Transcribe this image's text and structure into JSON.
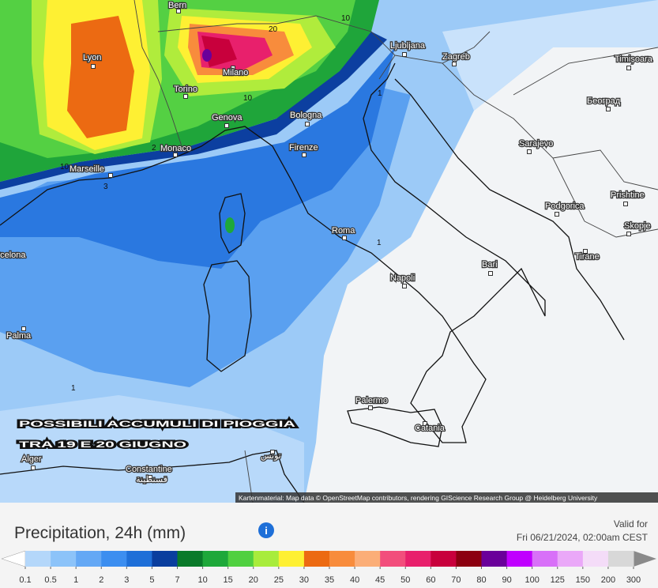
{
  "map": {
    "cities": [
      "Bern",
      "Lyon",
      "Milano",
      "Torino",
      "Genova",
      "Monaco",
      "Marseille",
      "Bologna",
      "Firenze",
      "Roma",
      "Napoli",
      "Bari",
      "Palermo",
      "Catania",
      "Palma",
      "Barcelona",
      "Alger",
      "Constantine",
      "قسنطينة",
      "تونس",
      "Ljubljana",
      "Zagreb",
      "Sarajevo",
      "Podgorica",
      "Tirane",
      "Skopje",
      "Prishtine",
      "Београд",
      "Timișoara"
    ],
    "contour_labels": [
      10,
      20,
      10,
      10,
      2,
      3,
      1,
      1,
      1
    ],
    "overlay": {
      "line1": "POSSIBILI ACCUMULI DI PIOGGIA",
      "line2": "TRA 19 E 20 GIUGNO"
    },
    "attribution": "Kartenmaterial: Map data © OpenStreetMap contributors, rendering GIScience Research Group @ Heidelberg University"
  },
  "footer": {
    "title": "Precipitation, 24h (mm)",
    "valid_label": "Valid for",
    "valid_time": "Fri 06/21/2024, 02:00am CEST"
  },
  "legend": {
    "ticks": [
      0.1,
      0.5,
      1,
      2,
      3,
      5,
      7,
      10,
      15,
      20,
      25,
      30,
      35,
      40,
      45,
      50,
      60,
      70,
      80,
      90,
      100,
      125,
      150,
      200,
      300
    ],
    "colors": [
      "#b4d7fa",
      "#8cc3f9",
      "#64a8f5",
      "#3c8ef0",
      "#1e6fd8",
      "#0a3e9e",
      "#0a7a2a",
      "#1ea83a",
      "#50d040",
      "#a8ec3c",
      "#fef033",
      "#ec6a12",
      "#f88c3c",
      "#fbae78",
      "#f24e7c",
      "#e8206c",
      "#c8003c",
      "#8c0010",
      "#6a009a",
      "#c000ff",
      "#d870f8",
      "#eaa8f8",
      "#f4dcf8",
      "#d8d8d8"
    ],
    "under_color": "#ffffff",
    "over_color": "#8a8a8a"
  }
}
